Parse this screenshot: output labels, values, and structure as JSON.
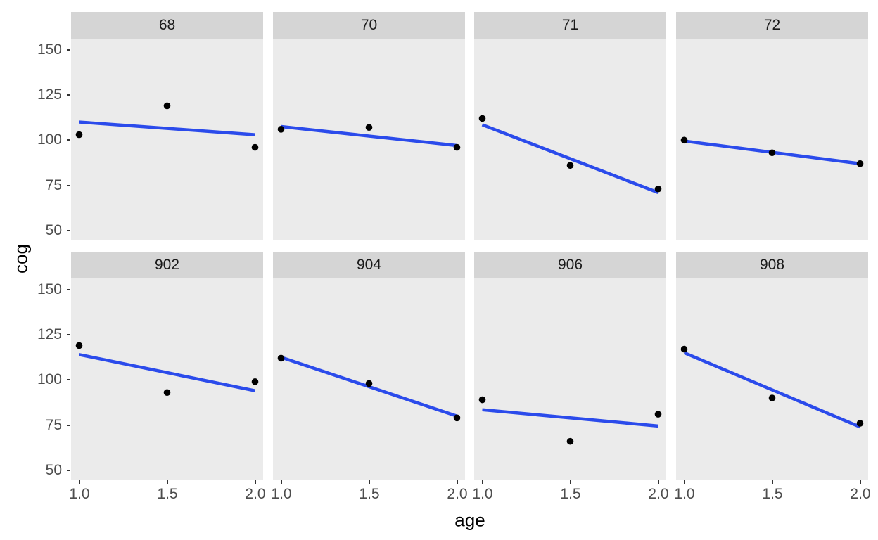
{
  "chart_data": {
    "type": "scatter",
    "title": "",
    "xlabel": "age",
    "ylabel": "cog",
    "grid": "off",
    "legend": "none",
    "facet_rows": 2,
    "facet_cols": 4,
    "xlim": [
      0.954,
      2.046
    ],
    "ylim": [
      44.9,
      156.1
    ],
    "x_ticks": [
      1.0,
      1.5,
      2.0
    ],
    "x_tick_labels": [
      "1.0",
      "1.5",
      "2.0"
    ],
    "y_ticks": [
      150,
      125,
      100,
      75,
      50
    ],
    "y_tick_labels": [
      "150",
      "125",
      "100",
      "75",
      "50"
    ],
    "colors": {
      "point": "#000000",
      "line": "#2B4BEB",
      "panel_bg": "#EBEBEB",
      "strip_bg": "#D5D5D5",
      "tick_label": "#4D4D4D",
      "strip_text": "#1A1A1A",
      "axis_title": "#000000",
      "page_bg": "#FFFFFF"
    },
    "facets": [
      {
        "label": "68",
        "x": [
          1.0,
          1.5,
          2.0
        ],
        "y": [
          103,
          119,
          96
        ],
        "fit_line": {
          "x": [
            1.0,
            2.0
          ],
          "y": [
            110,
            103
          ]
        }
      },
      {
        "label": "70",
        "x": [
          1.0,
          1.5,
          2.0
        ],
        "y": [
          106,
          107,
          96
        ],
        "fit_line": {
          "x": [
            1.0,
            2.0
          ],
          "y": [
            107.5,
            97
          ]
        }
      },
      {
        "label": "71",
        "x": [
          1.0,
          1.5,
          2.0
        ],
        "y": [
          112,
          86,
          73
        ],
        "fit_line": {
          "x": [
            1.0,
            2.0
          ],
          "y": [
            108.5,
            71
          ]
        }
      },
      {
        "label": "72",
        "x": [
          1.0,
          1.5,
          2.0
        ],
        "y": [
          100,
          93,
          87
        ],
        "fit_line": {
          "x": [
            1.0,
            2.0
          ],
          "y": [
            99.5,
            87
          ]
        }
      },
      {
        "label": "902",
        "x": [
          1.0,
          1.5,
          2.0
        ],
        "y": [
          119,
          93,
          99
        ],
        "fit_line": {
          "x": [
            1.0,
            2.0
          ],
          "y": [
            114,
            94
          ]
        }
      },
      {
        "label": "904",
        "x": [
          1.0,
          1.5,
          2.0
        ],
        "y": [
          112,
          98,
          79
        ],
        "fit_line": {
          "x": [
            1.0,
            2.0
          ],
          "y": [
            112.5,
            80
          ]
        }
      },
      {
        "label": "906",
        "x": [
          1.0,
          1.5,
          2.0
        ],
        "y": [
          89,
          66,
          81
        ],
        "fit_line": {
          "x": [
            1.0,
            2.0
          ],
          "y": [
            83.5,
            74.5
          ]
        }
      },
      {
        "label": "908",
        "x": [
          1.0,
          1.5,
          2.0
        ],
        "y": [
          117,
          90,
          76
        ],
        "fit_line": {
          "x": [
            1.0,
            2.0
          ],
          "y": [
            115,
            74
          ]
        }
      }
    ]
  }
}
